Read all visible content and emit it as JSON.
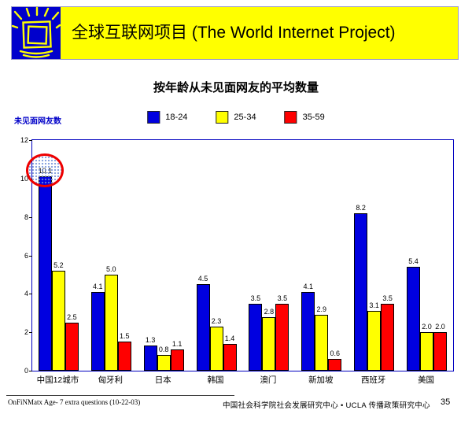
{
  "header": {
    "title": "全球互联网项目 (The World Internet Project)",
    "logo_icon": "crt-monitor-with-rays",
    "banner_color": "#FFFF00",
    "logo_background": "#0000CC"
  },
  "chart": {
    "title": "按年龄从未见面网友的平均数量",
    "y_axis_title": "未见面网友数",
    "y_axis_title_color": "#0000C8",
    "axis_color": "#0000C0"
  },
  "chart_data": {
    "type": "bar",
    "title": "按年龄从未见面网友的平均数量",
    "xlabel": "",
    "ylabel": "未见面网友数",
    "categories": [
      "中国12城市",
      "匈牙利",
      "日本",
      "韩国",
      "澳门",
      "新加坡",
      "西班牙",
      "美国"
    ],
    "series": [
      {
        "name": "18-24",
        "color": "#0000E0",
        "values": [
          10.1,
          4.1,
          1.3,
          4.5,
          3.5,
          4.1,
          8.2,
          5.4
        ]
      },
      {
        "name": "25-34",
        "color": "#FFFF00",
        "values": [
          5.2,
          5.0,
          0.8,
          2.3,
          2.8,
          2.9,
          3.1,
          2.0
        ]
      },
      {
        "name": "35-59",
        "color": "#FF0000",
        "values": [
          2.5,
          1.5,
          1.1,
          1.4,
          3.5,
          0.6,
          3.5,
          2.0
        ]
      }
    ],
    "ylim": [
      0,
      12
    ],
    "yticks": [
      0,
      2,
      4,
      6,
      8,
      10,
      12
    ],
    "grid": false,
    "legend_position": "top-center",
    "bar_labels": true,
    "annotation": {
      "shape": "ellipse",
      "color": "#EE0000",
      "fill_pattern": "light-blue-dots",
      "highlights": "中国12城市 18-24 value label 10.1"
    }
  },
  "footer": {
    "left": "OnFiNMatx Age- 7 extra questions (10-22-03)",
    "center": "中国社会科学院社会发展研究中心 • UCLA 传播政策研究中心",
    "page": "35"
  }
}
